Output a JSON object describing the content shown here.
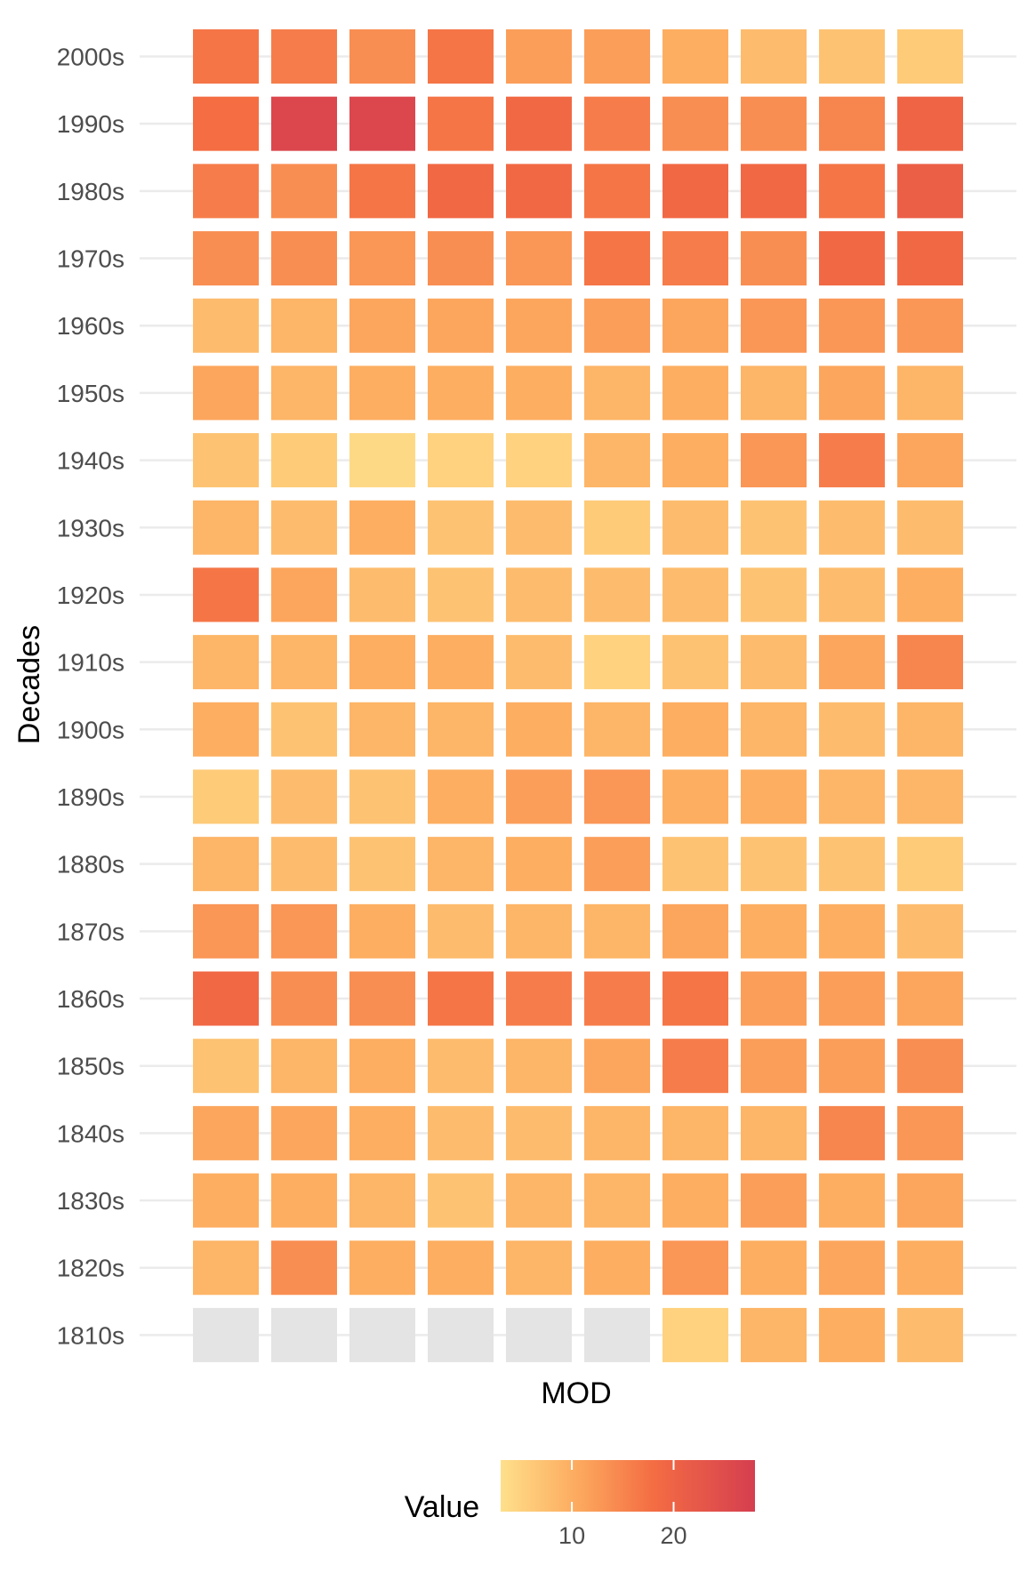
{
  "chart_data": {
    "type": "heatmap",
    "xlabel": "MOD",
    "ylabel": "Decades",
    "x_tick_labels": [],
    "columns": 10,
    "categories": [
      "2000s",
      "1990s",
      "1980s",
      "1970s",
      "1960s",
      "1950s",
      "1940s",
      "1930s",
      "1920s",
      "1910s",
      "1900s",
      "1890s",
      "1880s",
      "1870s",
      "1860s",
      "1850s",
      "1840s",
      "1830s",
      "1820s",
      "1810s"
    ],
    "values": [
      [
        17,
        16,
        14,
        17,
        12,
        12,
        10,
        8,
        7,
        6
      ],
      [
        18,
        26,
        26,
        17,
        19,
        16,
        14,
        14,
        15,
        20
      ],
      [
        16,
        14,
        17,
        19,
        19,
        17,
        19,
        19,
        17,
        21
      ],
      [
        14,
        14,
        13,
        14,
        13,
        17,
        16,
        14,
        19,
        19
      ],
      [
        8,
        9,
        11,
        11,
        11,
        12,
        11,
        13,
        13,
        13
      ],
      [
        11,
        9,
        10,
        10,
        10,
        9,
        10,
        9,
        11,
        9
      ],
      [
        7,
        6,
        4,
        5,
        5,
        9,
        10,
        13,
        16,
        11
      ],
      [
        9,
        8,
        10,
        7,
        8,
        6,
        8,
        7,
        8,
        8
      ],
      [
        17,
        11,
        8,
        7,
        8,
        8,
        8,
        7,
        8,
        10
      ],
      [
        9,
        9,
        10,
        10,
        8,
        5,
        7,
        8,
        11,
        15
      ],
      [
        10,
        7,
        9,
        9,
        10,
        9,
        10,
        9,
        8,
        9
      ],
      [
        6,
        8,
        7,
        10,
        12,
        13,
        10,
        10,
        9,
        9
      ],
      [
        9,
        8,
        7,
        9,
        10,
        12,
        7,
        7,
        7,
        6
      ],
      [
        13,
        13,
        10,
        8,
        9,
        9,
        11,
        10,
        10,
        8
      ],
      [
        19,
        14,
        14,
        17,
        16,
        16,
        17,
        12,
        12,
        11
      ],
      [
        7,
        9,
        10,
        8,
        9,
        11,
        16,
        12,
        12,
        14
      ],
      [
        11,
        11,
        10,
        8,
        8,
        9,
        9,
        9,
        15,
        13
      ],
      [
        10,
        10,
        9,
        7,
        9,
        9,
        10,
        12,
        10,
        11
      ],
      [
        9,
        14,
        10,
        10,
        9,
        10,
        13,
        10,
        11,
        10
      ],
      [
        null,
        null,
        null,
        null,
        null,
        null,
        5,
        9,
        10,
        8
      ]
    ],
    "missing_color": "#e4e4e4",
    "color_scale": {
      "stops": [
        {
          "value": 3,
          "color": "#fee08b"
        },
        {
          "value": 10,
          "color": "#fdae61"
        },
        {
          "value": 18,
          "color": "#f46d43"
        },
        {
          "value": 28,
          "color": "#d53e4f"
        }
      ]
    },
    "legend": {
      "title": "Value",
      "position": "bottom",
      "min": 3,
      "max": 28,
      "ticks": [
        10,
        20
      ],
      "tick_labels": [
        "10",
        "20"
      ]
    },
    "grid": true
  }
}
